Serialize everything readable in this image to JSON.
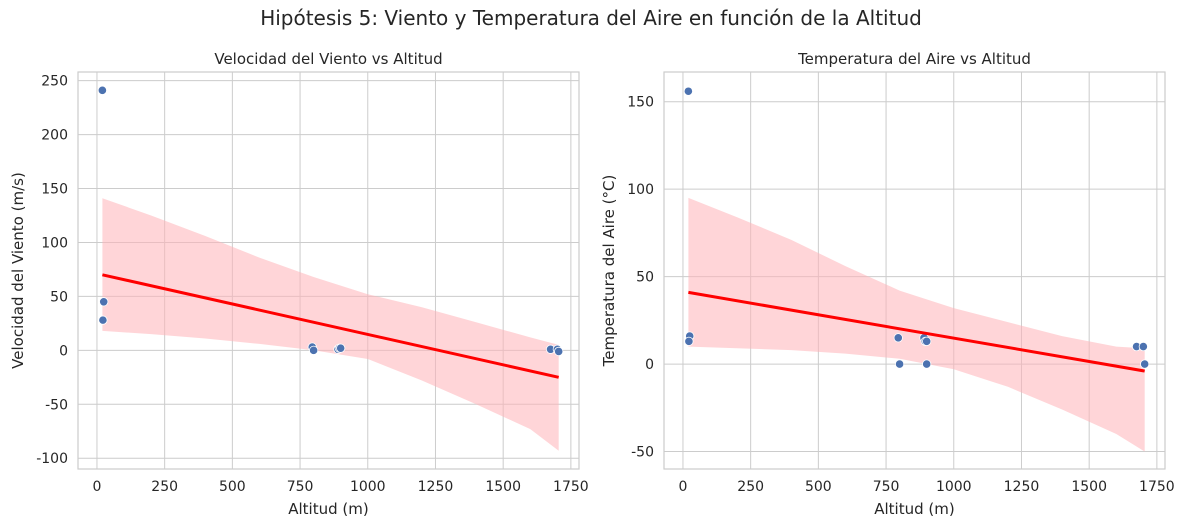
{
  "title": "Hipótesis 5: Viento y Temperatura del Aire en función de la Altitud",
  "colors": {
    "points": "#4c72b0",
    "fit": "#ff0000",
    "band": "#ffb3b8"
  },
  "chart_data": [
    {
      "type": "scatter",
      "title": "Velocidad del Viento vs Altitud",
      "xlabel": "Altitud (m)",
      "ylabel": "Velocidad del Viento (m/s)",
      "xlim": [
        -70,
        1780
      ],
      "ylim": [
        -110,
        258
      ],
      "xticks": [
        0,
        250,
        500,
        750,
        1000,
        1250,
        1500,
        1750
      ],
      "yticks": [
        -100,
        -50,
        0,
        50,
        100,
        150,
        200,
        250
      ],
      "grid": true,
      "points": [
        {
          "x": 20,
          "y": 241
        },
        {
          "x": 25,
          "y": 45
        },
        {
          "x": 22,
          "y": 28
        },
        {
          "x": 795,
          "y": 3
        },
        {
          "x": 800,
          "y": 0
        },
        {
          "x": 890,
          "y": 1
        },
        {
          "x": 895,
          "y": 2
        },
        {
          "x": 900,
          "y": 2
        },
        {
          "x": 1675,
          "y": 1
        },
        {
          "x": 1700,
          "y": 1
        },
        {
          "x": 1705,
          "y": -1
        }
      ],
      "fit": {
        "x": [
          20,
          1705
        ],
        "y": [
          70,
          -25
        ]
      },
      "band": {
        "x": [
          20,
          200,
          400,
          600,
          800,
          1000,
          1200,
          1400,
          1600,
          1705
        ],
        "upper": [
          141,
          125,
          106,
          86,
          68,
          52,
          40,
          26,
          12,
          5
        ],
        "lower": [
          18,
          15,
          11,
          6,
          0,
          -8,
          -28,
          -50,
          -73,
          -93
        ]
      }
    },
    {
      "type": "scatter",
      "title": "Temperatura del Aire vs Altitud",
      "xlabel": "Altitud (m)",
      "ylabel": "Temperatura del Aire (°C)",
      "xlim": [
        -70,
        1780
      ],
      "ylim": [
        -60,
        167
      ],
      "xticks": [
        0,
        250,
        500,
        750,
        1000,
        1250,
        1500,
        1750
      ],
      "yticks": [
        -50,
        0,
        50,
        100,
        150
      ],
      "grid": true,
      "points": [
        {
          "x": 20,
          "y": 156
        },
        {
          "x": 25,
          "y": 16
        },
        {
          "x": 22,
          "y": 13
        },
        {
          "x": 795,
          "y": 15
        },
        {
          "x": 800,
          "y": 0
        },
        {
          "x": 890,
          "y": 15
        },
        {
          "x": 895,
          "y": 13
        },
        {
          "x": 900,
          "y": 0
        },
        {
          "x": 900,
          "y": 13
        },
        {
          "x": 1675,
          "y": 10
        },
        {
          "x": 1700,
          "y": 10
        },
        {
          "x": 1705,
          "y": 0
        }
      ],
      "fit": {
        "x": [
          20,
          1705
        ],
        "y": [
          41,
          -4
        ]
      },
      "band": {
        "x": [
          20,
          200,
          400,
          600,
          800,
          1000,
          1200,
          1400,
          1600,
          1705
        ],
        "upper": [
          95,
          84,
          71,
          56,
          42,
          32,
          24,
          16,
          10,
          9
        ],
        "lower": [
          10,
          9,
          8,
          6,
          3,
          -3,
          -13,
          -26,
          -40,
          -50
        ]
      }
    }
  ]
}
